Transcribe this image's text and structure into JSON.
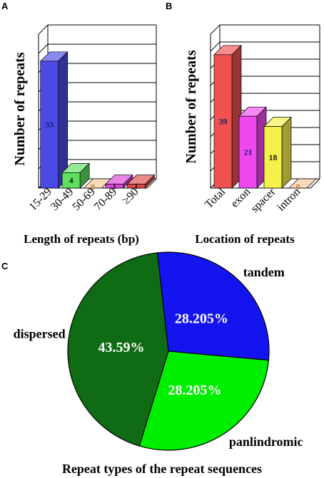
{
  "panels": {
    "a": "A",
    "b": "B",
    "c": "C"
  },
  "chart_data": [
    {
      "type": "bar",
      "panel": "A",
      "title": "",
      "ylabel": "Number of repeats",
      "xlabel": "Length of repeats (bp)",
      "ylim": [
        0,
        40
      ],
      "categories": [
        "15-29",
        "30-49",
        "50-69",
        "70-89",
        "≥90"
      ],
      "values": [
        33,
        4,
        0,
        1,
        1
      ],
      "data_labels": [
        "33",
        "4",
        "0",
        "1",
        "1"
      ],
      "colors": [
        "#4a4ae6",
        "#5ee05e",
        "#f5c896",
        "#dd44dd",
        "#e04848"
      ],
      "grid": true
    },
    {
      "type": "bar",
      "panel": "B",
      "title": "",
      "ylabel": "Number of repeats",
      "xlabel": "Location of repeats",
      "ylim": [
        0,
        45
      ],
      "categories": [
        "Total",
        "exon",
        "spacer",
        "intron"
      ],
      "values": [
        39,
        21,
        18,
        0
      ],
      "data_labels": [
        "39",
        "21",
        "18",
        "0"
      ],
      "colors": [
        "#f05050",
        "#f048f0",
        "#f6f04a",
        "#f5c896"
      ],
      "grid": true
    },
    {
      "type": "pie",
      "panel": "C",
      "title": "Repeat types of the repeat sequences",
      "slices": [
        {
          "name": "tandem",
          "value": 28.205,
          "label": "28.205%",
          "color": "#1414f0"
        },
        {
          "name": "panlindromic",
          "value": 28.205,
          "label": "28.205%",
          "color": "#00ee00"
        },
        {
          "name": "dispersed",
          "value": 43.59,
          "label": "43.59%",
          "color": "#0f6b14"
        }
      ]
    }
  ]
}
